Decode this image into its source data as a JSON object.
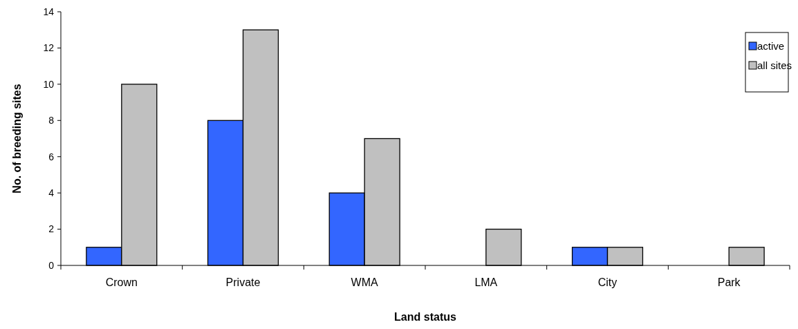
{
  "chart_data": {
    "type": "bar",
    "xlabel": "Land status",
    "ylabel": "No. of breeding sites",
    "categories": [
      "Crown",
      "Private",
      "WMA",
      "LMA",
      "City",
      "Park"
    ],
    "series": [
      {
        "name": "active",
        "color": "#3366ff",
        "values": [
          1,
          8,
          4,
          0,
          1,
          0
        ]
      },
      {
        "name": "all sites",
        "color": "#c0c0c0",
        "values": [
          10,
          13,
          7,
          2,
          1,
          1
        ]
      }
    ],
    "ylim": [
      0,
      14
    ],
    "yticks": [
      0,
      2,
      4,
      6,
      8,
      10,
      12,
      14
    ],
    "grid": false,
    "legend": "top right"
  }
}
